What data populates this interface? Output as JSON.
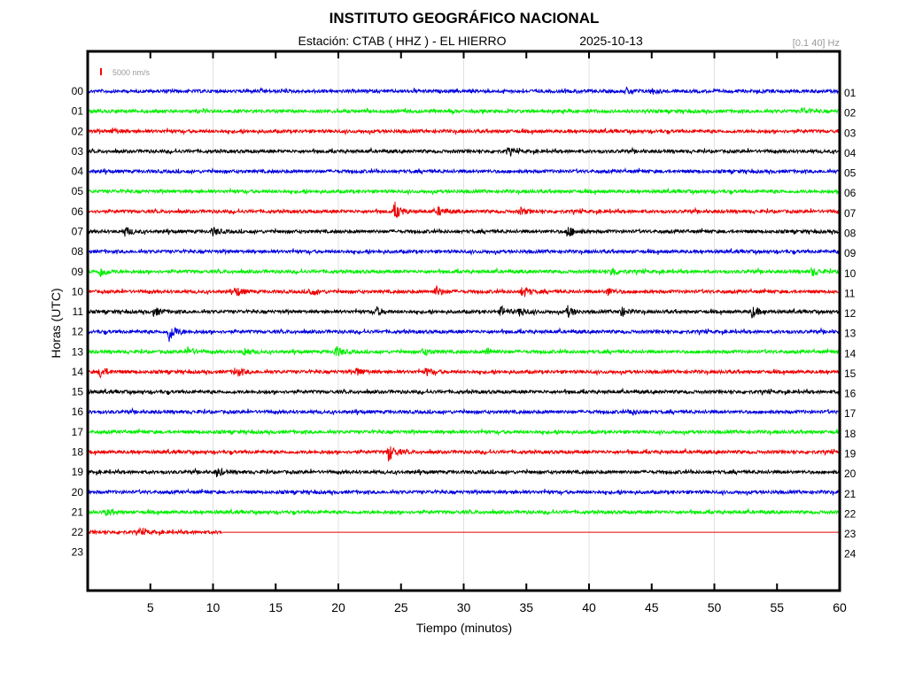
{
  "chart_data": {
    "type": "line",
    "title": "INSTITUTO GEOGRÁFICO NACIONAL",
    "subtitle_station": "Estación:  CTAB ( HHZ ) - EL HIERRO",
    "subtitle_date": "2025-10-13",
    "filter": "[0.1 40] Hz",
    "scale_legend": "5000 nm/s",
    "scale_color": "#ff0000",
    "xlabel": "Tiempo (minutos)",
    "ylabel": "Horas (UTC)",
    "xlim": [
      0,
      60
    ],
    "xticks": [
      "5",
      "10",
      "15",
      "20",
      "25",
      "30",
      "35",
      "40",
      "45",
      "50",
      "55",
      "60"
    ],
    "grid": true,
    "left_labels": [
      "00",
      "01",
      "02",
      "03",
      "04",
      "05",
      "06",
      "07",
      "08",
      "09",
      "10",
      "11",
      "12",
      "13",
      "14",
      "15",
      "16",
      "17",
      "18",
      "19",
      "20",
      "21",
      "22",
      "23"
    ],
    "right_labels": [
      "01",
      "02",
      "03",
      "04",
      "05",
      "06",
      "07",
      "08",
      "09",
      "10",
      "11",
      "12",
      "13",
      "14",
      "15",
      "16",
      "17",
      "18",
      "19",
      "20",
      "21",
      "22",
      "23",
      "24"
    ],
    "colors": [
      "#0000dd",
      "#00ee00",
      "#ee0000",
      "#000000"
    ],
    "traces": [
      {
        "hour": 0,
        "end": 60,
        "events": [
          [
            43,
            1.5
          ],
          [
            45,
            1.3
          ]
        ]
      },
      {
        "hour": 1,
        "end": 60,
        "events": [
          [
            57,
            1.6
          ]
        ]
      },
      {
        "hour": 2,
        "end": 60,
        "events": [
          [
            2,
            1.3
          ]
        ]
      },
      {
        "hour": 3,
        "end": 60,
        "events": [
          [
            33.5,
            1.6
          ]
        ]
      },
      {
        "hour": 4,
        "end": 60,
        "events": []
      },
      {
        "hour": 5,
        "end": 60,
        "events": []
      },
      {
        "hour": 6,
        "end": 60,
        "events": [
          [
            24.5,
            4
          ],
          [
            28,
            2
          ],
          [
            34.5,
            1.8
          ]
        ]
      },
      {
        "hour": 7,
        "end": 60,
        "events": [
          [
            3,
            2.2
          ],
          [
            10,
            2
          ],
          [
            38.3,
            3
          ]
        ]
      },
      {
        "hour": 8,
        "end": 60,
        "events": []
      },
      {
        "hour": 9,
        "end": 60,
        "events": [
          [
            1,
            2.5
          ],
          [
            41.8,
            2.5
          ],
          [
            57.8,
            2
          ]
        ]
      },
      {
        "hour": 10,
        "end": 60,
        "events": [
          [
            11.8,
            2.5
          ],
          [
            17.7,
            2
          ],
          [
            27.8,
            2.5
          ],
          [
            34.7,
            2.8
          ],
          [
            41.5,
            1.8
          ]
        ]
      },
      {
        "hour": 11,
        "end": 60,
        "events": [
          [
            5.3,
            2.2
          ],
          [
            23,
            2.3
          ],
          [
            33,
            2.4
          ],
          [
            34.5,
            2.3
          ],
          [
            38.3,
            2.6
          ],
          [
            42.5,
            2.4
          ],
          [
            53,
            3
          ]
        ]
      },
      {
        "hour": 12,
        "end": 60,
        "events": [
          [
            6.5,
            5
          ]
        ]
      },
      {
        "hour": 13,
        "end": 60,
        "events": [
          [
            8,
            2.2
          ],
          [
            12.5,
            2
          ],
          [
            19.8,
            2.8
          ],
          [
            26.8,
            2
          ],
          [
            31.8,
            1.8
          ]
        ]
      },
      {
        "hour": 14,
        "end": 60,
        "events": [
          [
            1,
            2.8
          ],
          [
            11.8,
            2.6
          ],
          [
            21.5,
            2
          ],
          [
            27,
            2
          ]
        ]
      },
      {
        "hour": 15,
        "end": 60,
        "events": []
      },
      {
        "hour": 16,
        "end": 60,
        "events": [
          [
            43.3,
            1.5
          ]
        ]
      },
      {
        "hour": 17,
        "end": 60,
        "events": []
      },
      {
        "hour": 18,
        "end": 60,
        "events": [
          [
            24,
            4.5
          ]
        ]
      },
      {
        "hour": 19,
        "end": 60,
        "events": [
          [
            10.3,
            2.2
          ]
        ]
      },
      {
        "hour": 20,
        "end": 60,
        "events": []
      },
      {
        "hour": 21,
        "end": 60,
        "events": [
          [
            1.5,
            1.3
          ]
        ]
      },
      {
        "hour": 22,
        "end": 10.8,
        "events": [
          [
            4.2,
            1.4
          ]
        ]
      }
    ]
  }
}
